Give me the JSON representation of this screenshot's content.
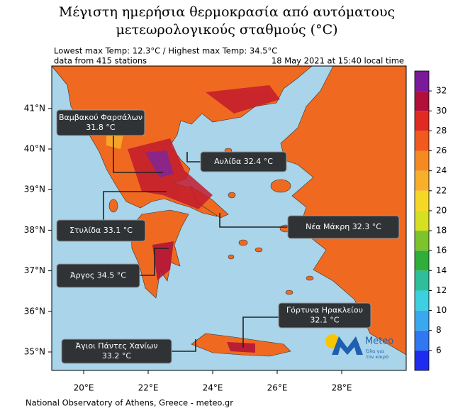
{
  "title": [
    "Μέγιστη ημερήσια θερμοκρασία από αυτόματους",
    "μετεωρολογικούς σταθμούς (°C)"
  ],
  "info": {
    "extremes": "Lowest max Temp: 12.3°C / Highest max Temp: 34.5°C",
    "stations": "data from 415 stations",
    "time": "18 May 2021 at 15:40 local time"
  },
  "map": {
    "lat_ticks": [
      {
        "value": 41,
        "label": "41°N"
      },
      {
        "value": 40,
        "label": "40°N"
      },
      {
        "value": 39,
        "label": "39°N"
      },
      {
        "value": 38,
        "label": "38°N"
      },
      {
        "value": 37,
        "label": "37°N"
      },
      {
        "value": 36,
        "label": "36°N"
      },
      {
        "value": 35,
        "label": "35°N"
      }
    ],
    "lon_ticks": [
      {
        "value": 20,
        "label": "20°E"
      },
      {
        "value": 22,
        "label": "22°E"
      },
      {
        "value": 24,
        "label": "24°E"
      },
      {
        "value": 26,
        "label": "26°E"
      },
      {
        "value": 28,
        "label": "28°E"
      }
    ]
  },
  "colorbar": {
    "lim": [
      4,
      34
    ],
    "ticks": [
      6,
      8,
      10,
      12,
      14,
      16,
      18,
      20,
      22,
      24,
      26,
      28,
      30,
      32
    ],
    "colors": [
      "#1e2cf0",
      "#2f78f2",
      "#3aa8ee",
      "#3cd0e0",
      "#2ebf9a",
      "#2fae3c",
      "#7dc42c",
      "#d6df22",
      "#f7d726",
      "#f8b02a",
      "#f68a22",
      "#f05a1e",
      "#e02a22",
      "#b0103a",
      "#7a1a9a"
    ]
  },
  "callouts": [
    {
      "lines": [
        "Βαμβακού Φαρσάλων",
        "31.8 °C"
      ]
    },
    {
      "lines": [
        "Αυλίδα 32.4 °C"
      ]
    },
    {
      "lines": [
        "Στυλίδα 33.1 °C"
      ]
    },
    {
      "lines": [
        "Νέα Μάκρη 32.3 °C"
      ]
    },
    {
      "lines": [
        "Άργος 34.5 °C"
      ]
    },
    {
      "lines": [
        "Γόρτυνα Ηρακλείου",
        "32.1 °C"
      ]
    },
    {
      "lines": [
        "Άγιοι Πάντες Χανίων",
        "33.2 °C"
      ]
    }
  ],
  "logo": {
    "name": "Meteo",
    "slogan": [
      "Όλα για",
      "τον καιρό"
    ]
  },
  "footer": "National Observatory of Athens, Greece - meteo.gr"
}
